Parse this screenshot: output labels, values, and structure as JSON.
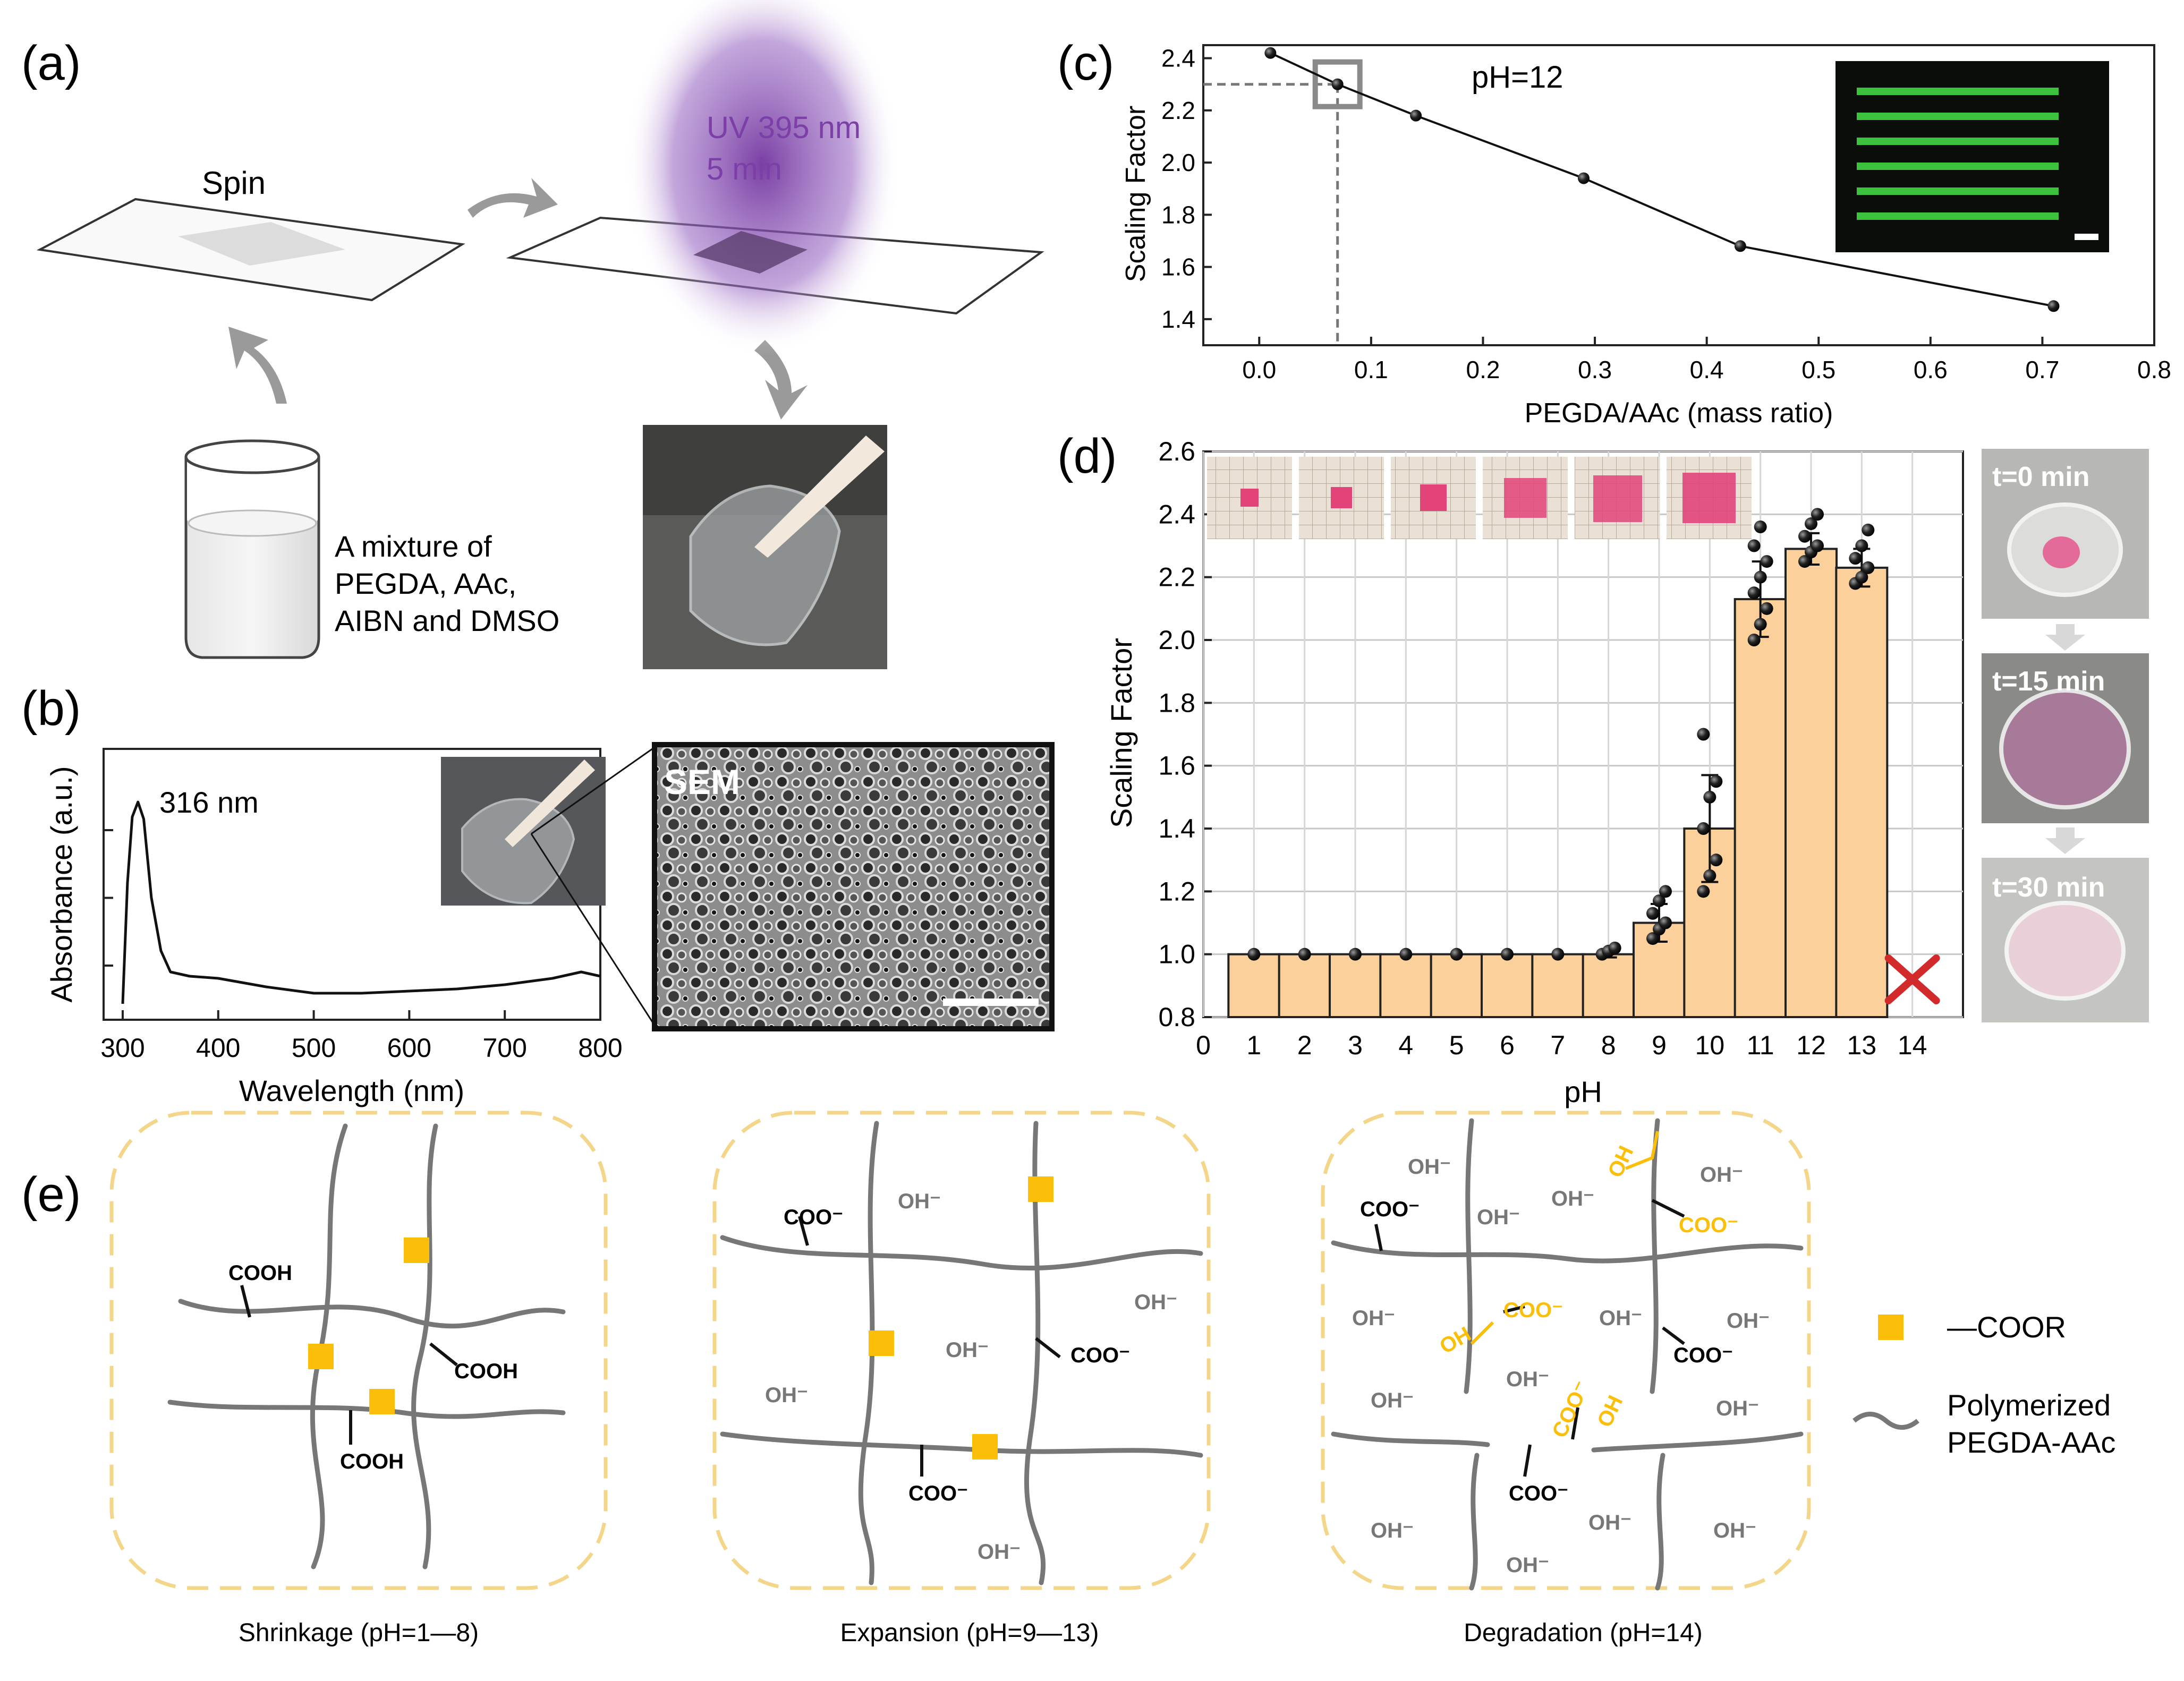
{
  "colors": {
    "bar": "#fcd09a",
    "uv": "#7b3fa7",
    "dash": "#f3d68a",
    "ester": "#fbbf0a",
    "red": "#d22a2a"
  },
  "panel_a": {
    "label": "(a)",
    "spin": "Spin",
    "uv_line1": "UV 395 nm",
    "uv_line2": "5 min",
    "mixture": [
      "A mixture of",
      "PEGDA, AAc,",
      "AIBN and DMSO"
    ]
  },
  "panel_b": {
    "label": "(b)",
    "peak_label": "316 nm",
    "sem_label": "SEM",
    "chart_data": {
      "type": "line",
      "xlabel": "Wavelength (nm)",
      "ylabel": "Absorbance (a.u.)",
      "xlim": [
        280,
        800
      ],
      "xticks": [
        300,
        400,
        500,
        600,
        700,
        800
      ],
      "x": [
        300,
        305,
        310,
        316,
        322,
        330,
        340,
        350,
        370,
        400,
        450,
        500,
        550,
        600,
        650,
        700,
        750,
        780,
        800
      ],
      "y": [
        0.05,
        0.62,
        0.93,
        1.0,
        0.92,
        0.55,
        0.3,
        0.2,
        0.18,
        0.17,
        0.13,
        0.1,
        0.1,
        0.11,
        0.12,
        0.14,
        0.17,
        0.2,
        0.18
      ]
    }
  },
  "panel_c": {
    "label": "(c)",
    "annotation": "pH=12",
    "chart_data": {
      "type": "line",
      "xlabel": "PEGDA/AAc (mass ratio)",
      "ylabel": "Scaling Factor",
      "xlim": [
        -0.05,
        0.8
      ],
      "ylim": [
        1.3,
        2.45
      ],
      "xticks": [
        "0.0",
        "0.1",
        "0.2",
        "0.3",
        "0.4",
        "0.5",
        "0.6",
        "0.7",
        "0.8"
      ],
      "yticks": [
        "1.4",
        "1.6",
        "1.8",
        "2.0",
        "2.2",
        "2.4"
      ],
      "x": [
        0.01,
        0.07,
        0.14,
        0.29,
        0.43,
        0.71
      ],
      "y": [
        2.42,
        2.3,
        2.18,
        1.94,
        1.68,
        1.45
      ],
      "highlight": {
        "x": 0.07,
        "y": 2.3
      }
    }
  },
  "panel_d": {
    "label": "(d)",
    "photo_labels": [
      "t=0 min",
      "t=15 min",
      "t=30 min"
    ],
    "chart_data": {
      "type": "bar",
      "xlabel": "pH",
      "ylabel": "Scaling Factor",
      "ylim": [
        0.8,
        2.6
      ],
      "yticks": [
        "0.8",
        "1.0",
        "1.2",
        "1.4",
        "1.6",
        "1.8",
        "2.0",
        "2.2",
        "2.4",
        "2.6"
      ],
      "xticks": [
        "0",
        "1",
        "2",
        "3",
        "4",
        "5",
        "6",
        "7",
        "8",
        "9",
        "10",
        "11",
        "12",
        "13",
        "14"
      ],
      "categories": [
        "1",
        "2",
        "3",
        "4",
        "5",
        "6",
        "7",
        "8",
        "9",
        "10",
        "11",
        "12",
        "13"
      ],
      "values": [
        1.0,
        1.0,
        1.0,
        1.0,
        1.0,
        1.0,
        1.0,
        1.0,
        1.1,
        1.4,
        2.13,
        2.29,
        2.23
      ],
      "errors": [
        0.0,
        0.0,
        0.0,
        0.0,
        0.0,
        0.0,
        0.0,
        0.01,
        0.06,
        0.17,
        0.12,
        0.05,
        0.06
      ],
      "points": [
        [
          1.0
        ],
        [
          1.0
        ],
        [
          1.0
        ],
        [
          1.0
        ],
        [
          1.0
        ],
        [
          1.0
        ],
        [
          1.0
        ],
        [
          1.0,
          1.01,
          1.02
        ],
        [
          1.05,
          1.08,
          1.1,
          1.13,
          1.17,
          1.2
        ],
        [
          1.2,
          1.25,
          1.3,
          1.4,
          1.5,
          1.55,
          1.7
        ],
        [
          2.0,
          2.05,
          2.1,
          2.15,
          2.2,
          2.25,
          2.3,
          2.36
        ],
        [
          2.25,
          2.28,
          2.3,
          2.33,
          2.37,
          2.4
        ],
        [
          2.18,
          2.2,
          2.23,
          2.26,
          2.3,
          2.35
        ]
      ],
      "degraded_category": "14"
    }
  },
  "panel_e": {
    "label": "(e)",
    "captions": [
      "Shrinkage (pH=1—8)",
      "Expansion (pH=9—13)",
      "Degradation (pH=14)"
    ],
    "cooh": "COOH",
    "coo": "COO⁻",
    "oh_ion": "OH⁻",
    "oh": "OH",
    "legend": {
      "ester": "—COOR",
      "polymer_line1": "Polymerized",
      "polymer_line2": "PEGDA-AAc"
    }
  }
}
